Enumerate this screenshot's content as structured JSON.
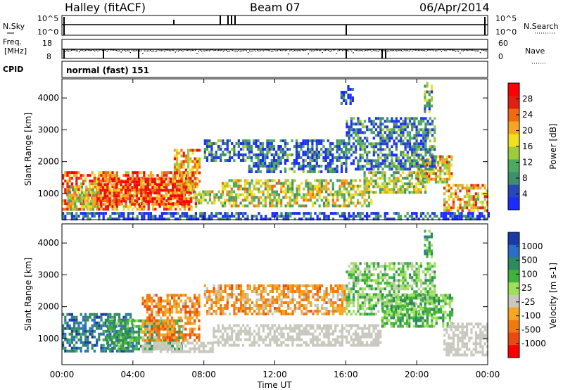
{
  "header": {
    "station": "Halley (fitACF)",
    "beam": "Beam 07",
    "date": "06/Apr/2014"
  },
  "side_labels": {
    "nsky": "N.Sky",
    "nsearch": "N.Search",
    "freq_line1": "Freq.",
    "freq_line2": "[MHz]",
    "nave": "Nave",
    "cpid": "CPID"
  },
  "tick_labels": {
    "noise_top_left": "10^5",
    "noise_bottom_left": "10^0",
    "noise_top_right": "10^5",
    "noise_bottom_right": "10^0",
    "freq_top": "18",
    "freq_bottom": "8",
    "nave_top": "60",
    "nave_bottom": "0"
  },
  "cpid_text": "normal (fast) 151",
  "colors": {
    "power": [
      "#1a2cff",
      "#2748b8",
      "#3f8f6e",
      "#4da860",
      "#9ccc3a",
      "#f0e020",
      "#f5a623",
      "#f06a10",
      "#e02010",
      "#ff0000"
    ],
    "velocity": [
      "#1a3aa8",
      "#2a6ec8",
      "#2e8a5e",
      "#3fb23a",
      "#9ee05a",
      "#c8c8be",
      "#f5a623",
      "#f07a10",
      "#e84a10",
      "#ff0000"
    ],
    "velocity_gray": "#c8c8be"
  },
  "chart_data": [
    {
      "type": "heatmap",
      "title": "Power",
      "xlabel": "Time UT",
      "ylabel": "Slant Range [km]",
      "x_ticks": [
        "00:00",
        "04:00",
        "08:00",
        "12:00",
        "16:00",
        "20:00",
        "00:00"
      ],
      "xlim_hours": [
        0,
        24
      ],
      "y_ticks": [
        1000,
        2000,
        3000,
        4000
      ],
      "ylim": [
        180,
        4600
      ],
      "colorbar": {
        "label": "Power [dB]",
        "ticks": [
          4,
          8,
          12,
          16,
          20,
          24,
          28
        ],
        "range": [
          0,
          32
        ]
      },
      "echo_regions": [
        {
          "t0": 0.0,
          "t1": 7.6,
          "r0": 550,
          "r1": 1700,
          "level": 0.75
        },
        {
          "t0": 0.3,
          "t1": 2.2,
          "r0": 500,
          "r1": 1250,
          "level": 0.55
        },
        {
          "t0": 2.0,
          "t1": 7.3,
          "r0": 700,
          "r1": 1500,
          "level": 0.85
        },
        {
          "t0": 6.3,
          "t1": 7.8,
          "r0": 1000,
          "r1": 2400,
          "level": 0.7
        },
        {
          "t0": 7.4,
          "t1": 9.0,
          "r0": 700,
          "r1": 1100,
          "level": 0.45
        },
        {
          "t0": 9.0,
          "t1": 17.5,
          "r0": 650,
          "r1": 1450,
          "level": 0.5
        },
        {
          "t0": 17.0,
          "t1": 20.5,
          "r0": 1000,
          "r1": 1700,
          "level": 0.45
        },
        {
          "t0": 20.0,
          "t1": 22.0,
          "r0": 1400,
          "r1": 2200,
          "level": 0.6
        },
        {
          "t0": 21.5,
          "t1": 24.0,
          "r0": 500,
          "r1": 1300,
          "level": 0.65
        },
        {
          "t0": 8.0,
          "t1": 10.5,
          "r0": 2000,
          "r1": 2700,
          "level": 0.2
        },
        {
          "t0": 10.5,
          "t1": 16.0,
          "r0": 1700,
          "r1": 2700,
          "level": 0.15
        },
        {
          "t0": 16.0,
          "t1": 21.0,
          "r0": 1800,
          "r1": 3400,
          "level": 0.2
        },
        {
          "t0": 20.4,
          "t1": 20.9,
          "r0": 3600,
          "r1": 4500,
          "level": 0.3
        },
        {
          "t0": 15.7,
          "t1": 16.4,
          "r0": 3800,
          "r1": 4400,
          "level": 0.1
        },
        {
          "t0": 0.0,
          "t1": 24.0,
          "r0": 200,
          "r1": 420,
          "level": 0.05
        }
      ]
    },
    {
      "type": "heatmap",
      "title": "Velocity",
      "xlabel": "Time UT",
      "ylabel": "Slant Range [km]",
      "x_ticks": [
        "00:00",
        "04:00",
        "08:00",
        "12:00",
        "16:00",
        "20:00",
        "00:00"
      ],
      "xlim_hours": [
        0,
        24
      ],
      "y_ticks": [
        1000,
        2000,
        3000,
        4000
      ],
      "ylim": [
        180,
        4600
      ],
      "colorbar": {
        "label": "Velocity [m s-1]",
        "ticks": [
          "1000",
          "500",
          "100",
          "25",
          "-25",
          "-100",
          "-500",
          "-1000"
        ]
      },
      "echo_regions": [
        {
          "t0": 0.0,
          "t1": 4.0,
          "r0": 600,
          "r1": 1800,
          "level": 0.15
        },
        {
          "t0": 2.5,
          "t1": 6.8,
          "r0": 650,
          "r1": 1600,
          "level": 0.3
        },
        {
          "t0": 4.5,
          "t1": 7.8,
          "r0": 900,
          "r1": 2400,
          "level": 0.75
        },
        {
          "t0": 4.5,
          "t1": 8.5,
          "r0": 600,
          "r1": 900,
          "level": 0.5
        },
        {
          "t0": 8.5,
          "t1": 18.0,
          "r0": 800,
          "r1": 1450,
          "level": 0.5
        },
        {
          "t0": 8.0,
          "t1": 16.0,
          "r0": 1800,
          "r1": 2700,
          "level": 0.7
        },
        {
          "t0": 16.0,
          "t1": 21.0,
          "r0": 1800,
          "r1": 3400,
          "level": 0.4
        },
        {
          "t0": 18.0,
          "t1": 22.0,
          "r0": 1400,
          "r1": 2400,
          "level": 0.35
        },
        {
          "t0": 21.5,
          "t1": 24.0,
          "r0": 500,
          "r1": 1500,
          "level": 0.55
        },
        {
          "t0": 20.4,
          "t1": 20.9,
          "r0": 3600,
          "r1": 4500,
          "level": 0.3
        }
      ]
    }
  ]
}
